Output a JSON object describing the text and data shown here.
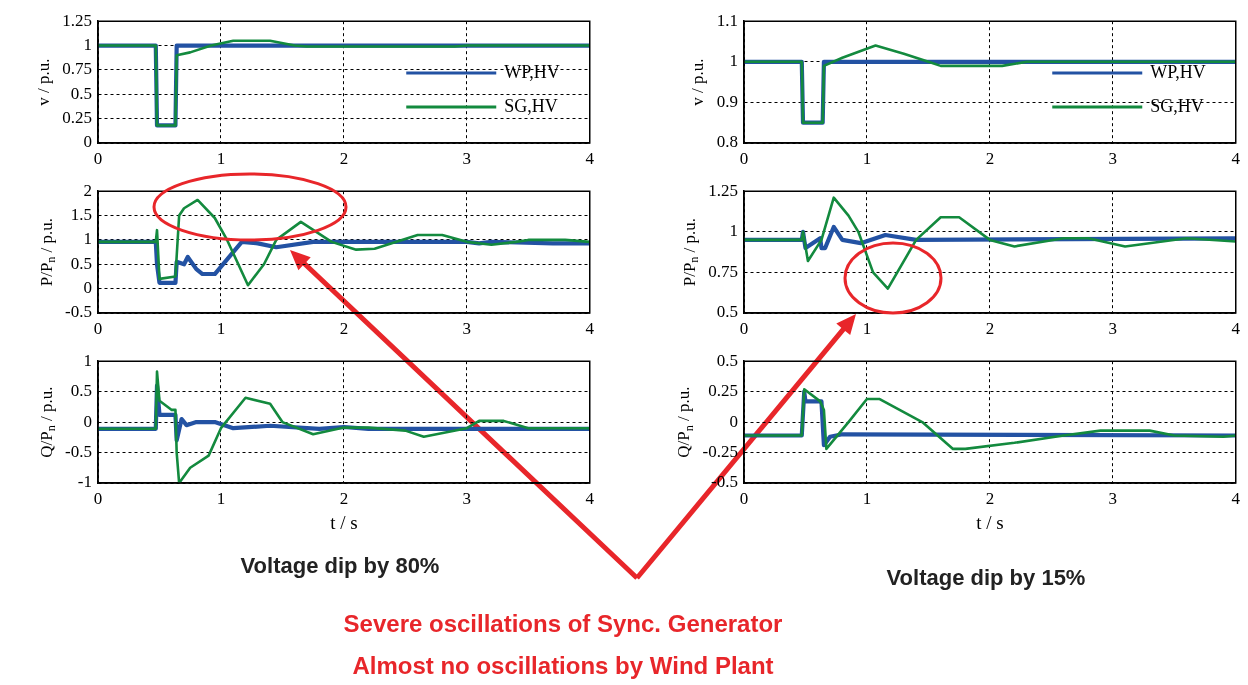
{
  "chart_data": [
    {
      "type": "line",
      "ylabel": "v / p.u.",
      "xlim": [
        0,
        4
      ],
      "xticks": [
        0,
        1,
        2,
        3,
        4
      ],
      "ylim": [
        0,
        1.25
      ],
      "yticks": [
        0,
        0.25,
        0.5,
        0.75,
        1,
        1.25
      ],
      "grid": true,
      "legend": "bottom right",
      "series": [
        {
          "name": "WP,HV",
          "color": "#2352a3",
          "x": [
            0,
            0.47,
            0.48,
            0.63,
            0.64,
            4
          ],
          "values": [
            1,
            1,
            0.18,
            0.18,
            1,
            1
          ]
        },
        {
          "name": "SG,HV",
          "color": "#138a3e",
          "x": [
            0,
            0.47,
            0.48,
            0.63,
            0.64,
            0.75,
            0.92,
            1.1,
            1.4,
            1.6,
            1.7,
            2.9,
            3.0,
            4
          ],
          "values": [
            1,
            1,
            0.18,
            0.18,
            0.9,
            0.93,
            1.0,
            1.05,
            1.05,
            1.0,
            0.99,
            0.99,
            1.0,
            1.0
          ]
        }
      ]
    },
    {
      "type": "line",
      "ylabel": "v / p.u.",
      "xlim": [
        0,
        4
      ],
      "xticks": [
        0,
        1,
        2,
        3,
        4
      ],
      "ylim": [
        0.8,
        1.1
      ],
      "yticks": [
        0.8,
        0.9,
        1,
        1.1
      ],
      "grid": true,
      "legend": "bottom right",
      "series": [
        {
          "name": "WP,HV",
          "color": "#2352a3",
          "x": [
            0,
            0.47,
            0.48,
            0.64,
            0.65,
            4
          ],
          "values": [
            1,
            1,
            0.85,
            0.85,
            1,
            1
          ]
        },
        {
          "name": "SG,HV",
          "color": "#138a3e",
          "x": [
            0,
            0.47,
            0.48,
            0.64,
            0.65,
            0.8,
            1.07,
            1.3,
            1.5,
            1.6,
            2.1,
            2.3,
            4
          ],
          "values": [
            1,
            1,
            0.85,
            0.85,
            0.99,
            1.01,
            1.04,
            1.02,
            1.0,
            0.99,
            0.99,
            1.0,
            1.0
          ]
        }
      ]
    },
    {
      "type": "line",
      "ylabel": "P/P$_{n}$ / p.u.",
      "xlim": [
        0,
        4
      ],
      "xticks": [
        0,
        1,
        2,
        3,
        4
      ],
      "ylim": [
        -0.5,
        2
      ],
      "yticks": [
        -0.5,
        0,
        0.5,
        1,
        1.5,
        2
      ],
      "grid": true,
      "series": [
        {
          "color": "#2352a3",
          "x": [
            0,
            0.47,
            0.48,
            0.5,
            0.63,
            0.64,
            0.7,
            0.73,
            0.8,
            0.85,
            0.95,
            1.17,
            1.3,
            1.45,
            1.75,
            3.0,
            3.1,
            3.2,
            3.7,
            4
          ],
          "values": [
            0.96,
            0.96,
            0.5,
            0.12,
            0.12,
            0.55,
            0.5,
            0.65,
            0.4,
            0.3,
            0.3,
            0.96,
            0.93,
            0.85,
            0.96,
            0.96,
            0.93,
            0.96,
            0.93,
            0.93
          ]
        },
        {
          "color": "#138a3e",
          "x": [
            0,
            0.47,
            0.48,
            0.5,
            0.63,
            0.66,
            0.7,
            0.81,
            0.95,
            1.05,
            1.22,
            1.35,
            1.45,
            1.65,
            1.9,
            2.1,
            2.25,
            2.6,
            2.8,
            3.0,
            3.2,
            3.4,
            3.5,
            3.8,
            4
          ],
          "values": [
            0.96,
            0.96,
            1.2,
            0.2,
            0.25,
            1.5,
            1.65,
            1.82,
            1.45,
            1.0,
            0.07,
            0.5,
            1.0,
            1.37,
            0.96,
            0.8,
            0.82,
            1.1,
            1.1,
            0.96,
            0.9,
            0.96,
            1.0,
            1.0,
            0.96
          ]
        }
      ]
    },
    {
      "type": "line",
      "ylabel": "P/P$_{n}$ / p.u.",
      "xlim": [
        0,
        4
      ],
      "xticks": [
        0,
        1,
        2,
        3,
        4
      ],
      "ylim": [
        0.5,
        1.25
      ],
      "yticks": [
        0.5,
        0.75,
        1,
        1.25
      ],
      "grid": true,
      "series": [
        {
          "color": "#2352a3",
          "x": [
            0,
            0.47,
            0.48,
            0.5,
            0.62,
            0.63,
            0.66,
            0.73,
            0.8,
            0.95,
            1.15,
            1.4,
            4
          ],
          "values": [
            0.95,
            0.95,
            1.0,
            0.9,
            0.96,
            0.9,
            0.9,
            1.03,
            0.95,
            0.93,
            0.98,
            0.95,
            0.96
          ]
        },
        {
          "color": "#138a3e",
          "x": [
            0,
            0.47,
            0.48,
            0.52,
            0.63,
            0.73,
            0.85,
            0.93,
            1.05,
            1.17,
            1.4,
            1.6,
            1.75,
            2.0,
            2.2,
            2.6,
            2.8,
            3.1,
            3.6,
            4
          ],
          "values": [
            0.95,
            0.95,
            1.0,
            0.82,
            0.95,
            1.21,
            1.1,
            1.0,
            0.75,
            0.65,
            0.95,
            1.09,
            1.09,
            0.95,
            0.91,
            0.96,
            0.96,
            0.91,
            0.96,
            0.94
          ]
        }
      ]
    },
    {
      "type": "line",
      "ylabel": "Q/P$_{n}$ / p.u.",
      "xlabel": "t / s",
      "xlim": [
        0,
        4
      ],
      "xticks": [
        0,
        1,
        2,
        3,
        4
      ],
      "ylim": [
        -1,
        1
      ],
      "yticks": [
        -1,
        -0.5,
        0,
        0.5,
        1
      ],
      "grid": true,
      "annotations": [
        "Voltage dip by 80%"
      ],
      "series": [
        {
          "color": "#2352a3",
          "x": [
            0,
            0.47,
            0.48,
            0.5,
            0.63,
            0.64,
            0.68,
            0.72,
            0.8,
            0.95,
            1.1,
            1.4,
            1.8,
            2.0,
            2.2,
            4
          ],
          "values": [
            -0.11,
            -0.11,
            0.6,
            0.12,
            0.12,
            -0.3,
            0.05,
            -0.05,
            0,
            0,
            -0.1,
            -0.06,
            -0.11,
            -0.08,
            -0.11,
            -0.11
          ]
        },
        {
          "color": "#138a3e",
          "x": [
            0,
            0.47,
            0.48,
            0.5,
            0.6,
            0.63,
            0.64,
            0.66,
            0.75,
            0.9,
            1.0,
            1.2,
            1.4,
            1.5,
            1.75,
            2.0,
            2.2,
            2.5,
            2.65,
            3.0,
            3.1,
            3.3,
            3.5,
            4
          ],
          "values": [
            -0.11,
            -0.11,
            0.83,
            0.35,
            0.2,
            0.2,
            -0.5,
            -1.0,
            -0.75,
            -0.55,
            -0.1,
            0.4,
            0.3,
            0.0,
            -0.2,
            -0.09,
            -0.09,
            -0.14,
            -0.24,
            -0.1,
            0.02,
            0.02,
            -0.1,
            -0.1
          ]
        }
      ]
    },
    {
      "type": "line",
      "ylabel": "Q/P$_{n}$ / p.u.",
      "xlabel": "t / s",
      "xlim": [
        0,
        4
      ],
      "xticks": [
        0,
        1,
        2,
        3,
        4
      ],
      "ylim": [
        -0.5,
        0.5
      ],
      "yticks": [
        -0.5,
        -0.25,
        0,
        0.25,
        0.5
      ],
      "grid": true,
      "annotations": [
        "Voltage dip by 15%"
      ],
      "series": [
        {
          "color": "#2352a3",
          "x": [
            0,
            0.47,
            0.49,
            0.5,
            0.63,
            0.65,
            0.7,
            0.8,
            4
          ],
          "values": [
            -0.11,
            -0.11,
            0.25,
            0.17,
            0.17,
            -0.19,
            -0.12,
            -0.1,
            -0.11
          ]
        },
        {
          "color": "#138a3e",
          "x": [
            0,
            0.47,
            0.49,
            0.62,
            0.65,
            0.67,
            0.85,
            1.0,
            1.1,
            1.45,
            1.7,
            1.8,
            2.2,
            2.6,
            2.9,
            3.3,
            3.5,
            3.9,
            4
          ],
          "values": [
            -0.11,
            -0.11,
            0.27,
            0.17,
            0.1,
            -0.22,
            0.0,
            0.19,
            0.19,
            0.0,
            -0.22,
            -0.22,
            -0.17,
            -0.11,
            -0.07,
            -0.07,
            -0.11,
            -0.12,
            -0.11
          ]
        }
      ]
    },
    {
      "type": "other",
      "annotations": [
        "Severe oscillations of Sync. Generator",
        "Almost no oscillations by Wind Plant"
      ]
    }
  ]
}
